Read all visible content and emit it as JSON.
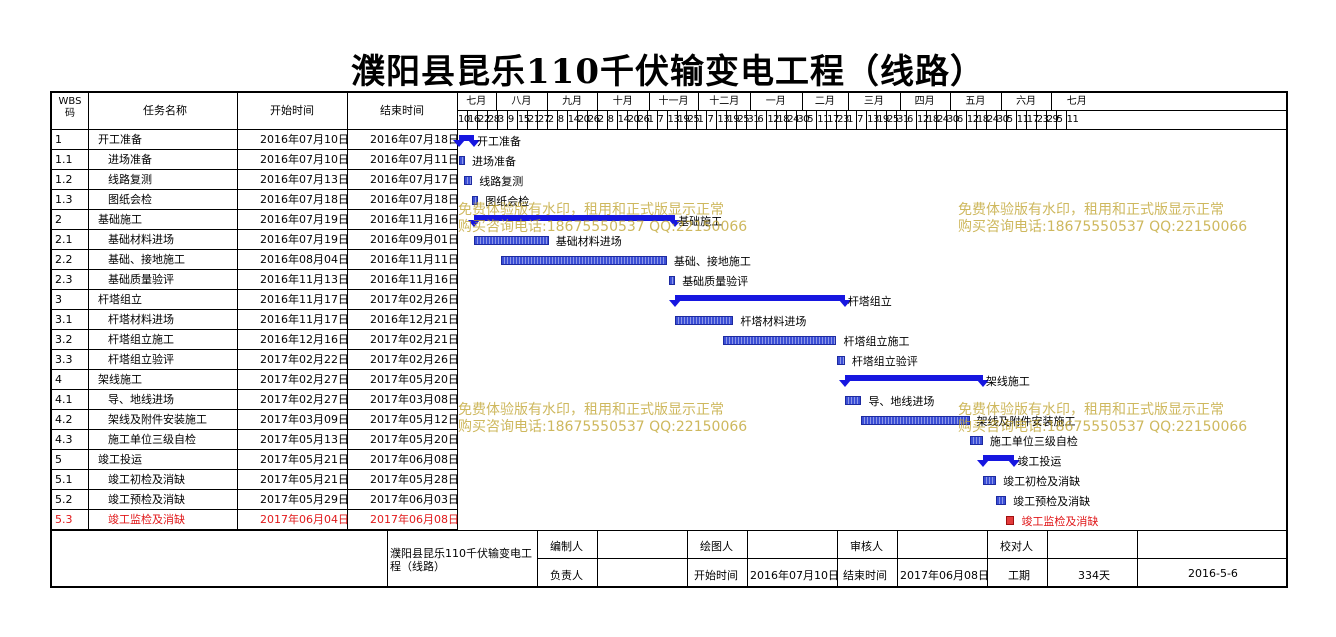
{
  "title": "濮阳县昆乐110千伏输变电工程（线路）",
  "headers": {
    "wbs": "WBS码",
    "name": "任务名称",
    "start": "开始时间",
    "end": "结束时间"
  },
  "months": [
    "七月",
    "八月",
    "九月",
    "十月",
    "十一月",
    "十二月",
    "一月",
    "二月",
    "三月",
    "四月",
    "五月",
    "六月",
    "七月"
  ],
  "days": [
    "10",
    "16",
    "22",
    "28",
    "3",
    "9",
    "15",
    "21",
    "27",
    "2",
    "8",
    "14",
    "20",
    "26",
    "2",
    "8",
    "14",
    "20",
    "26",
    "1",
    "7",
    "13",
    "19",
    "25",
    "1",
    "7",
    "13",
    "19",
    "25",
    "31",
    "6",
    "12",
    "18",
    "24",
    "30",
    "5",
    "11",
    "17",
    "23",
    "1",
    "7",
    "13",
    "19",
    "25",
    "31",
    "6",
    "12",
    "18",
    "24",
    "30",
    "6",
    "12",
    "18",
    "24",
    "30",
    "5",
    "11",
    "17",
    "23",
    "29",
    "5",
    "11"
  ],
  "tasks": [
    {
      "wbs": "1",
      "name": "开工准备",
      "start": "2016年07月10日",
      "end": "2016年07月18日",
      "label": "开工准备"
    },
    {
      "wbs": "1.1",
      "name": "进场准备",
      "start": "2016年07月10日",
      "end": "2016年07月11日",
      "label": "进场准备"
    },
    {
      "wbs": "1.2",
      "name": "线路复测",
      "start": "2016年07月13日",
      "end": "2016年07月17日",
      "label": "线路复测"
    },
    {
      "wbs": "1.3",
      "name": "图纸会检",
      "start": "2016年07月18日",
      "end": "2016年07月18日",
      "label": "图纸会检"
    },
    {
      "wbs": "2",
      "name": "基础施工",
      "start": "2016年07月19日",
      "end": "2016年11月16日",
      "label": "基础施工"
    },
    {
      "wbs": "2.1",
      "name": "基础材料进场",
      "start": "2016年07月19日",
      "end": "2016年09月01日",
      "label": "基础材料进场"
    },
    {
      "wbs": "2.2",
      "name": "基础、接地施工",
      "start": "2016年08月04日",
      "end": "2016年11月11日",
      "label": "基础、接地施工"
    },
    {
      "wbs": "2.3",
      "name": "基础质量验评",
      "start": "2016年11月13日",
      "end": "2016年11月16日",
      "label": "基础质量验评"
    },
    {
      "wbs": "3",
      "name": "杆塔组立",
      "start": "2016年11月17日",
      "end": "2017年02月26日",
      "label": "杆塔组立"
    },
    {
      "wbs": "3.1",
      "name": "杆塔材料进场",
      "start": "2016年11月17日",
      "end": "2016年12月21日",
      "label": "杆塔材料进场"
    },
    {
      "wbs": "3.2",
      "name": "杆塔组立施工",
      "start": "2016年12月16日",
      "end": "2017年02月21日",
      "label": "杆塔组立施工"
    },
    {
      "wbs": "3.3",
      "name": "杆塔组立验评",
      "start": "2017年02月22日",
      "end": "2017年02月26日",
      "label": "杆塔组立验评"
    },
    {
      "wbs": "4",
      "name": "架线施工",
      "start": "2017年02月27日",
      "end": "2017年05月20日",
      "label": "架线施工"
    },
    {
      "wbs": "4.1",
      "name": "导、地线进场",
      "start": "2017年02月27日",
      "end": "2017年03月08日",
      "label": "导、地线进场"
    },
    {
      "wbs": "4.2",
      "name": "架线及附件安装施工",
      "start": "2017年03月09日",
      "end": "2017年05月12日",
      "label": "架线及附件安装施工"
    },
    {
      "wbs": "4.3",
      "name": "施工单位三级自检",
      "start": "2017年05月13日",
      "end": "2017年05月20日",
      "label": "施工单位三级自检"
    },
    {
      "wbs": "5",
      "name": "竣工投运",
      "start": "2017年05月21日",
      "end": "2017年06月08日",
      "label": "竣工投运"
    },
    {
      "wbs": "5.1",
      "name": "竣工初检及消缺",
      "start": "2017年05月21日",
      "end": "2017年05月28日",
      "label": "竣工初检及消缺"
    },
    {
      "wbs": "5.2",
      "name": "竣工预检及消缺",
      "start": "2017年05月29日",
      "end": "2017年06月03日",
      "label": "竣工预检及消缺"
    },
    {
      "wbs": "5.3",
      "name": "竣工监检及消缺",
      "start": "2017年06月04日",
      "end": "2017年06月08日",
      "label": "竣工监检及消缺",
      "highlight": true
    }
  ],
  "watermark": {
    "line1": "免费体验版有水印，租用和正式版显示正常",
    "line2": "购买咨询电话:18675550537 QQ:22150066"
  },
  "footer": {
    "project": "濮阳县昆乐110千伏输变电工程（线路）",
    "compiler_label": "编制人",
    "drawer_label": "绘图人",
    "reviewer_label": "审核人",
    "checker_label": "校对人",
    "owner_label": "负责人",
    "start_label": "开始时间",
    "start_value": "2016年07月10日",
    "end_label": "结束时间",
    "end_value": "2017年06月08日",
    "duration_label": "工期",
    "duration_value": "334天",
    "date_value": "2016-5-6"
  },
  "colors": {
    "bar": "#3b4fd6",
    "summary": "#1616e0",
    "highlight": "#e0181a",
    "watermark": "#bea028"
  }
}
